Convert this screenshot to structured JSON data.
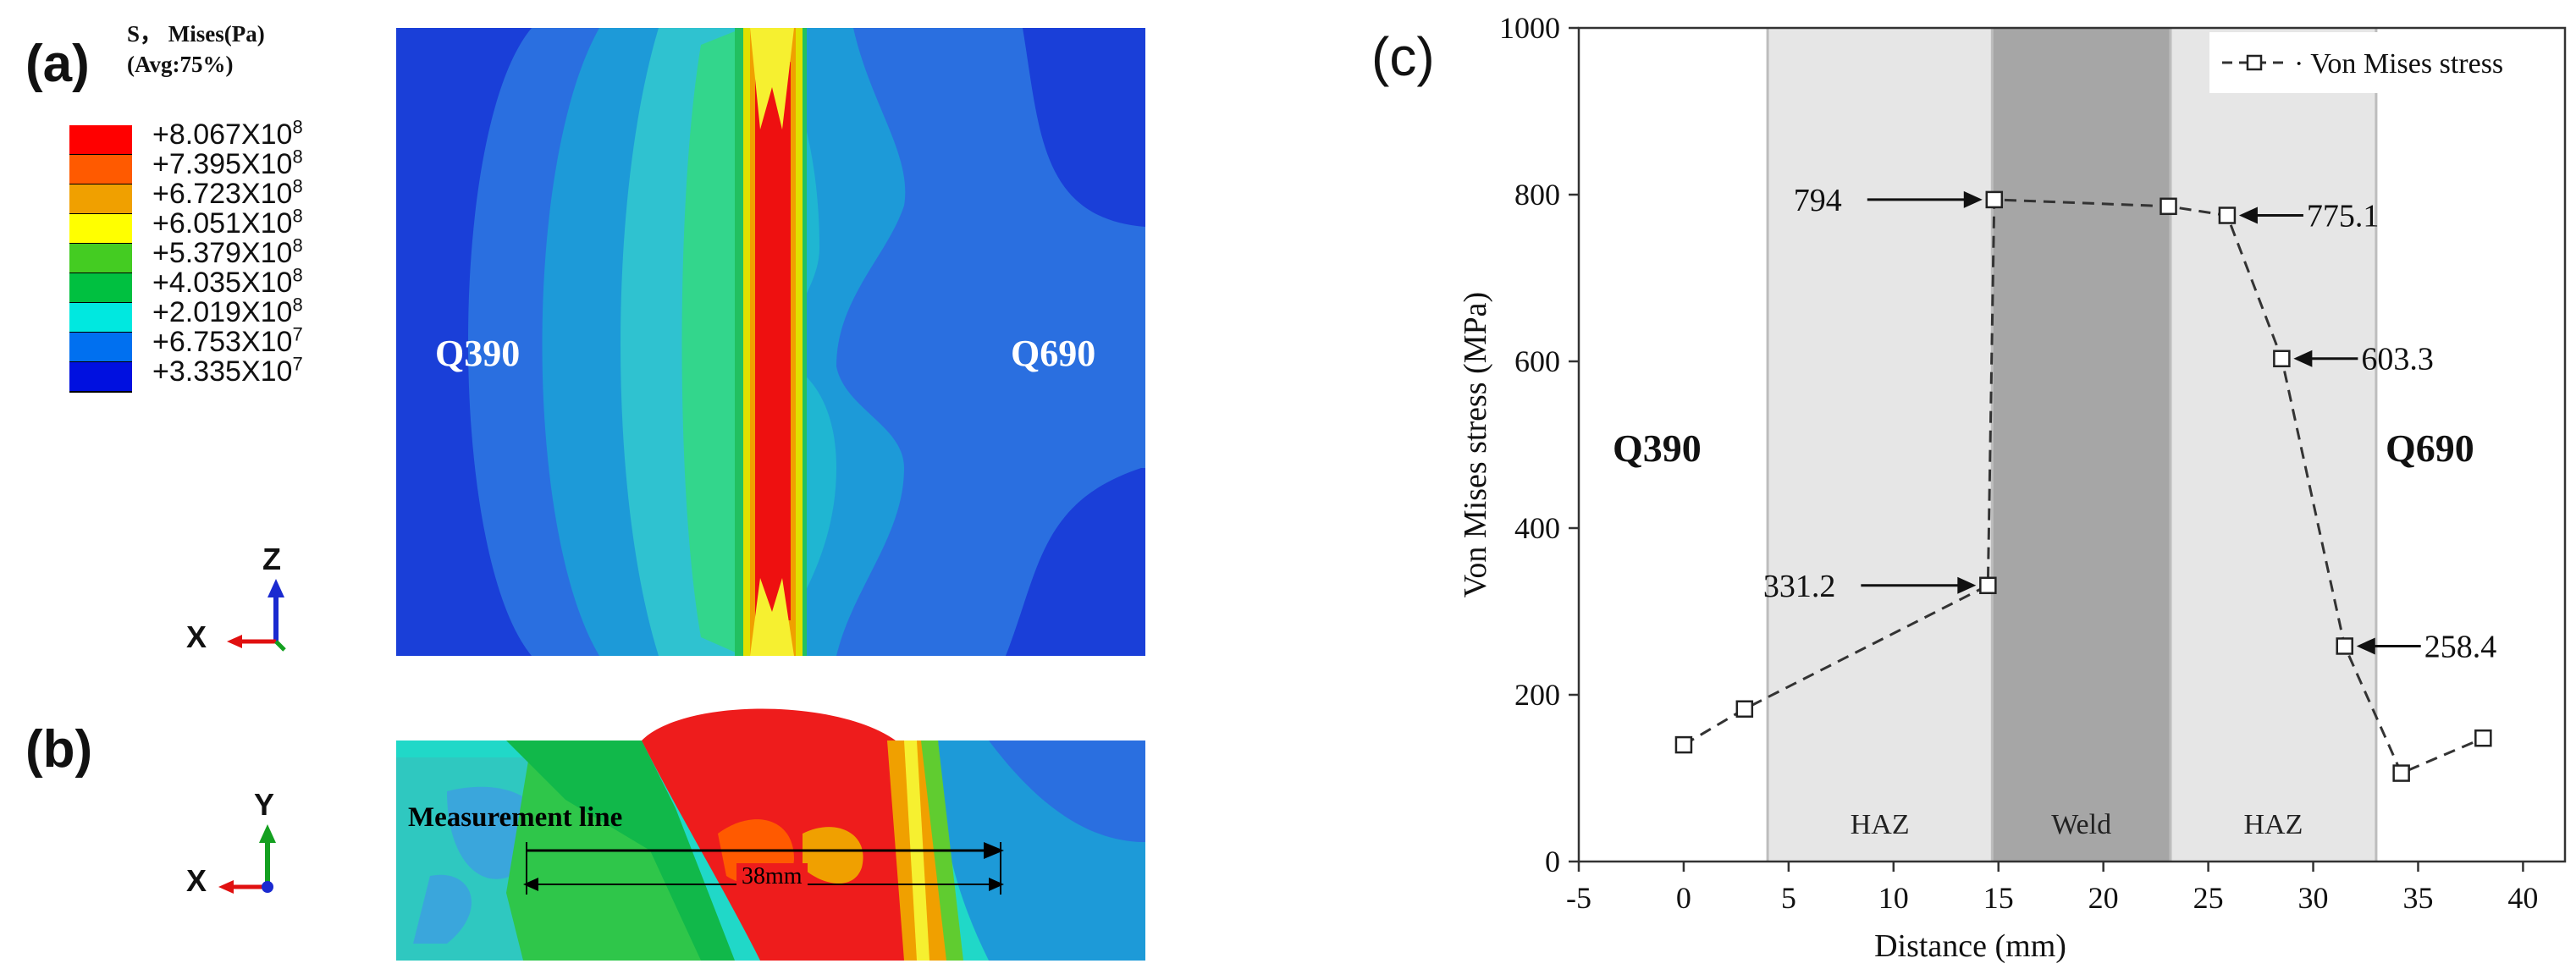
{
  "panel_a": {
    "label": "(a)",
    "legend_title_line1": "S， Mises(Pa)",
    "legend_title_line2": "(Avg:75%)",
    "legend": [
      {
        "color": "#ff0000",
        "value": "+8.067X10",
        "exp": "8"
      },
      {
        "color": "#ff5a00",
        "value": "+7.395X10",
        "exp": "8"
      },
      {
        "color": "#f0a000",
        "value": "+6.723X10",
        "exp": "8"
      },
      {
        "color": "#ffff00",
        "value": "+6.051X10",
        "exp": "8"
      },
      {
        "color": "#44cc22",
        "value": "+5.379X10",
        "exp": "8"
      },
      {
        "color": "#00c040",
        "value": "+4.035X10",
        "exp": "8"
      },
      {
        "color": "#00e8e0",
        "value": "+2.019X10",
        "exp": "8"
      },
      {
        "color": "#0070f0",
        "value": "+6.753X10",
        "exp": "7"
      },
      {
        "color": "#0010e0",
        "value": "+3.335X10",
        "exp": "7"
      }
    ],
    "left_steel": "Q390",
    "right_steel": "Q690",
    "axis_vertical": "Z",
    "axis_horizontal": "X"
  },
  "panel_b": {
    "label": "(b)",
    "measurement_label": "Measurement line",
    "dimension_label": "38mm",
    "axis_vertical": "Y",
    "axis_horizontal": "X"
  },
  "chart_data": {
    "type": "line",
    "panel_label": "(c)",
    "title": "",
    "xlabel": "Distance (mm)",
    "ylabel": "Von Mises stress (MPa)",
    "xlim": [
      -5,
      42
    ],
    "ylim": [
      0,
      1000
    ],
    "xticks": [
      -5,
      0,
      5,
      10,
      15,
      20,
      25,
      30,
      35,
      40
    ],
    "yticks": [
      0,
      200,
      400,
      600,
      800,
      1000
    ],
    "series": [
      {
        "name": "Von Mises stress",
        "x": [
          0,
          2.9,
          14.5,
          14.8,
          23.1,
          25.9,
          28.5,
          31.5,
          34.2,
          38.1
        ],
        "y": [
          140,
          183,
          331.2,
          794,
          786,
          775.1,
          603.3,
          258.4,
          106,
          148
        ]
      }
    ],
    "regions": [
      {
        "label": "HAZ",
        "x0": 4.0,
        "x1": 14.7,
        "color": "#e6e6e6"
      },
      {
        "label": "Weld",
        "x0": 14.7,
        "x1": 23.2,
        "color": "#a6a6a6"
      },
      {
        "label": "HAZ",
        "x0": 23.2,
        "x1": 33.0,
        "color": "#e6e6e6"
      }
    ],
    "annotations": [
      {
        "text": "794",
        "x": 14.8,
        "y": 794,
        "side": "left"
      },
      {
        "text": "775.1",
        "x": 25.9,
        "y": 775.1,
        "side": "right"
      },
      {
        "text": "603.3",
        "x": 28.5,
        "y": 603.3,
        "side": "right"
      },
      {
        "text": "331.2",
        "x": 14.5,
        "y": 331.2,
        "side": "left"
      },
      {
        "text": "258.4",
        "x": 31.5,
        "y": 258.4,
        "side": "right"
      }
    ],
    "zone_labels": [
      "Q390",
      "Q690"
    ],
    "legend_position": "top-right"
  }
}
